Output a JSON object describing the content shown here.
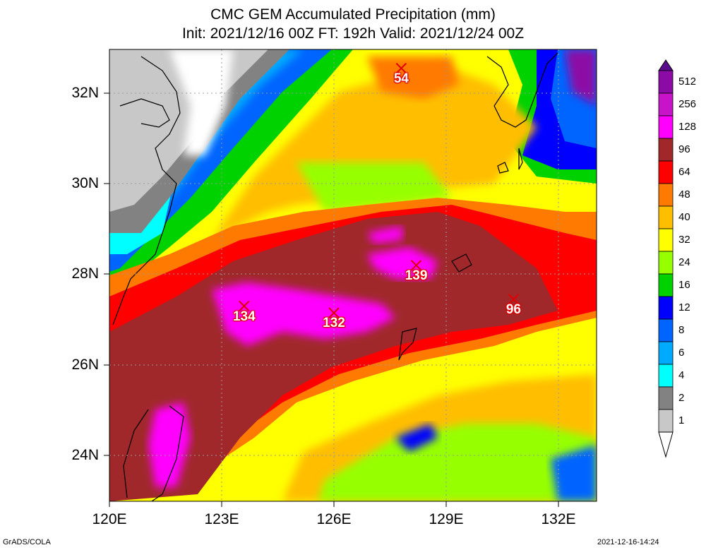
{
  "title": {
    "line1": "CMC GEM Accumulated Precipitation (mm)",
    "line2": "Init: 2021/12/16 00Z  FT: 192h  Valid: 2021/12/24 00Z"
  },
  "axes": {
    "lat_labels": [
      "32N",
      "30N",
      "28N",
      "26N",
      "24N"
    ],
    "lon_labels": [
      "120E",
      "123E",
      "126E",
      "129E",
      "132E"
    ]
  },
  "colorbar": {
    "levels": [
      "512",
      "256",
      "128",
      "96",
      "64",
      "48",
      "40",
      "32",
      "24",
      "16",
      "12",
      "8",
      "6",
      "4",
      "2",
      "1"
    ],
    "colors": [
      "#5a0a8c",
      "#8c0aa6",
      "#c814c8",
      "#ff00ff",
      "#a0282a",
      "#ff0000",
      "#ff7a00",
      "#ffbe00",
      "#ffff00",
      "#96ff00",
      "#00d200",
      "#0000ff",
      "#0064ff",
      "#00aaff",
      "#00ffff",
      "#828282",
      "#c8c8c8",
      "#ffffff"
    ]
  },
  "markers": [
    {
      "value": "54",
      "lon": 127.8,
      "lat": 32.55
    },
    {
      "value": "134",
      "lon": 123.6,
      "lat": 27.3
    },
    {
      "value": "132",
      "lon": 126.0,
      "lat": 27.15
    },
    {
      "value": "139",
      "lon": 128.2,
      "lat": 28.2
    },
    {
      "value": "96",
      "lon": 130.8,
      "lat": 27.45
    }
  ],
  "credit_left": "GrADS/COLA",
  "credit_right": "2021-12-16-14:24"
}
